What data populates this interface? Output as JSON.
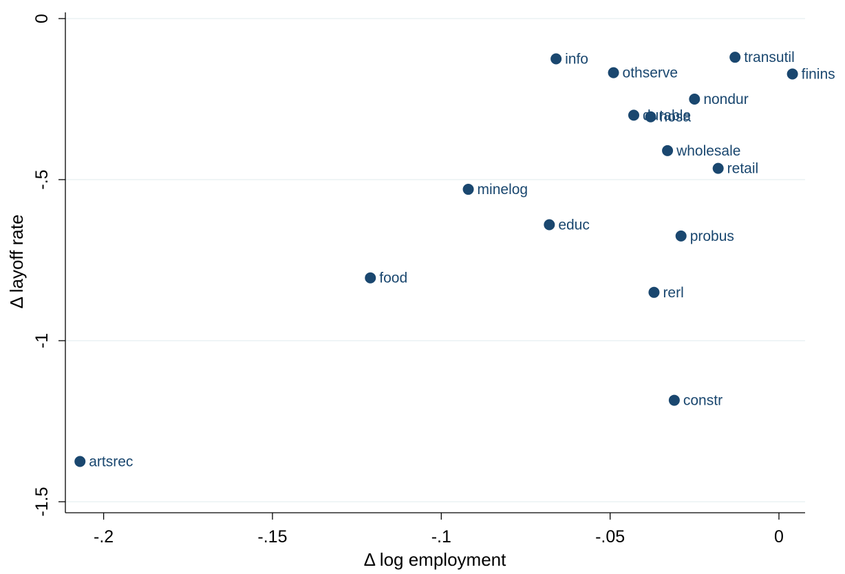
{
  "chart_data": {
    "type": "scatter",
    "title": "",
    "xlabel": "Δ log employment",
    "ylabel": "Δ layoff rate",
    "xlim": [
      -0.211,
      0.0075
    ],
    "ylim": [
      -1.55,
      0.0
    ],
    "xticks": [
      -0.2,
      -0.15,
      -0.1,
      -0.05,
      0
    ],
    "xtick_labels": [
      "-.2",
      "-.15",
      "-.1",
      "-.05",
      "0"
    ],
    "yticks": [
      0,
      -0.5,
      -1,
      -1.5
    ],
    "ytick_labels": [
      "0",
      "-.5",
      "-1",
      "-1.5"
    ],
    "grid": true,
    "marker_color": "#1a476f",
    "points": [
      {
        "label": "info",
        "x": -0.066,
        "y": -0.125
      },
      {
        "label": "transutil",
        "x": -0.013,
        "y": -0.12
      },
      {
        "label": "othserve",
        "x": -0.049,
        "y": -0.168
      },
      {
        "label": "finins",
        "x": 0.004,
        "y": -0.172
      },
      {
        "label": "nondur",
        "x": -0.025,
        "y": -0.25
      },
      {
        "label": "durable",
        "x": -0.043,
        "y": -0.3
      },
      {
        "label": "hosa",
        "x": -0.038,
        "y": -0.305
      },
      {
        "label": "wholesale",
        "x": -0.033,
        "y": -0.41
      },
      {
        "label": "retail",
        "x": -0.018,
        "y": -0.465
      },
      {
        "label": "minelog",
        "x": -0.092,
        "y": -0.53
      },
      {
        "label": "educ",
        "x": -0.068,
        "y": -0.64
      },
      {
        "label": "probus",
        "x": -0.029,
        "y": -0.675
      },
      {
        "label": "food",
        "x": -0.121,
        "y": -0.805
      },
      {
        "label": "rerl",
        "x": -0.037,
        "y": -0.85
      },
      {
        "label": "constr",
        "x": -0.031,
        "y": -1.185
      },
      {
        "label": "artsrec",
        "x": -0.207,
        "y": -1.375
      }
    ]
  }
}
